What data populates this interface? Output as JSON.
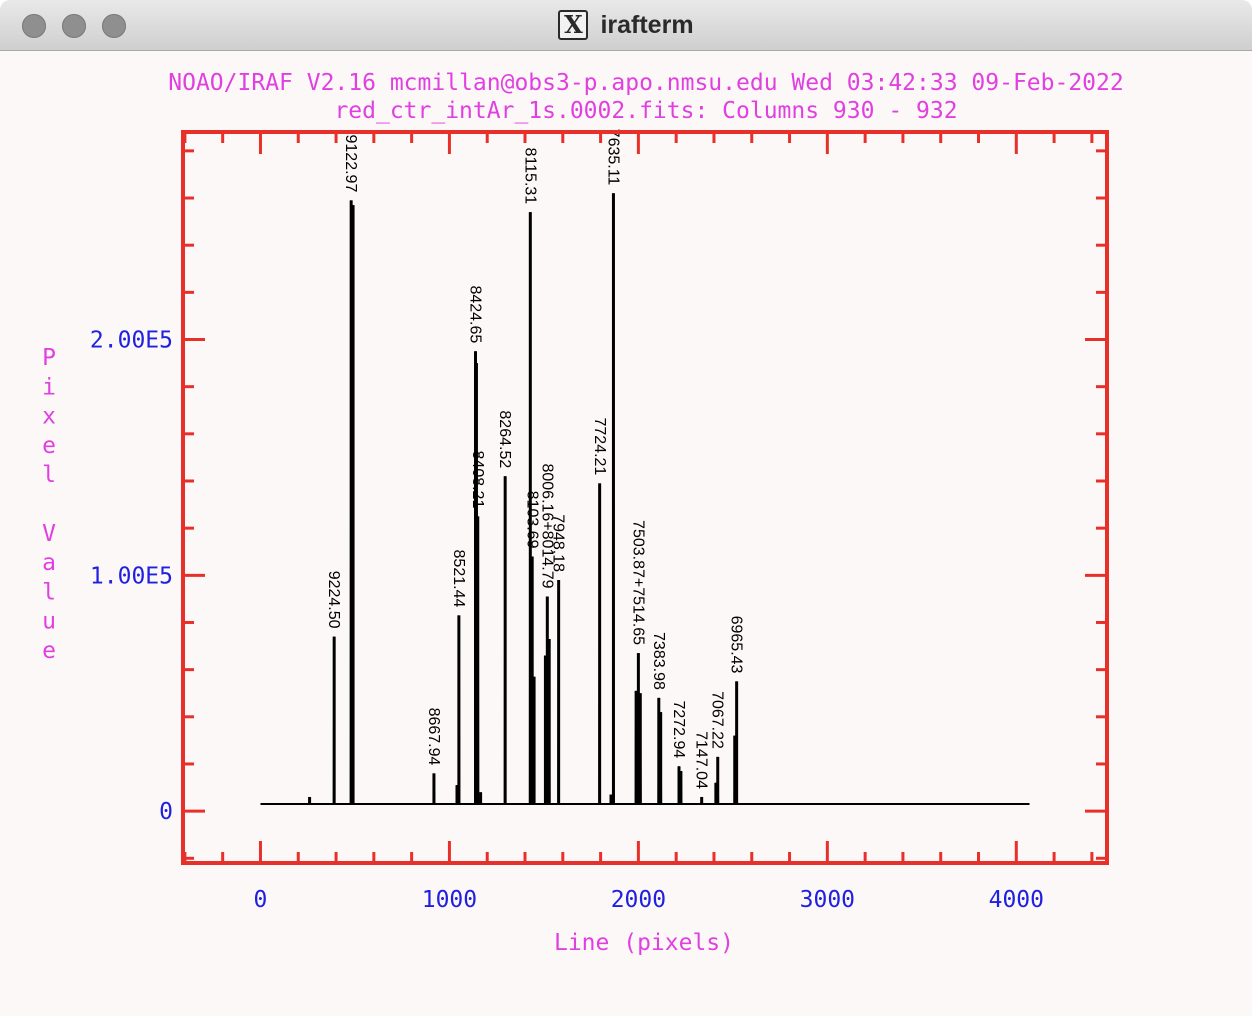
{
  "window": {
    "title": "irafterm",
    "icon": "x11-logo-icon"
  },
  "colors": {
    "title": "#e040e0",
    "tick_labels": "#2020e0",
    "frame": "#e8302a",
    "data": "#000000"
  },
  "chart_data": {
    "type": "line",
    "title": "NOAO/IRAF V2.16 mcmillan@obs3-p.apo.nmsu.edu Wed 03:42:33 09-Feb-2022",
    "subtitle": "red_ctr_intAr_1s.0002.fits: Columns 930 - 932",
    "xlabel": "Line (pixels)",
    "ylabel": "Pixel Value",
    "xlim": [
      -410,
      4480
    ],
    "ylim": [
      -22000,
      288000
    ],
    "xticks": [
      0,
      1000,
      2000,
      3000,
      4000
    ],
    "xtick_labels": [
      "0",
      "1000",
      "2000",
      "3000",
      "4000"
    ],
    "yticks": [
      0,
      100000,
      200000
    ],
    "ytick_labels": [
      "0",
      "1.00E5",
      "2.00E5"
    ],
    "grid": false,
    "baseline": 3000,
    "x_start": 0,
    "x_end": 4070,
    "peaks": [
      {
        "x": 260,
        "y": 6000,
        "label": ""
      },
      {
        "x": 390,
        "y": 74000,
        "label": "9224.50"
      },
      {
        "x": 480,
        "y": 259000,
        "label": "9122.97"
      },
      {
        "x": 490,
        "y": 257000,
        "label": ""
      },
      {
        "x": 918,
        "y": 16000,
        "label": "8667.94"
      },
      {
        "x": 1040,
        "y": 11000,
        "label": ""
      },
      {
        "x": 1050,
        "y": 83000,
        "label": "8521.44"
      },
      {
        "x": 1138,
        "y": 195000,
        "label": "8424.65"
      },
      {
        "x": 1143,
        "y": 190000,
        "label": ""
      },
      {
        "x": 1150,
        "y": 125000,
        "label": "8408.21"
      },
      {
        "x": 1165,
        "y": 8000,
        "label": ""
      },
      {
        "x": 1295,
        "y": 142000,
        "label": "8264.52"
      },
      {
        "x": 1428,
        "y": 254000,
        "label": "8115.31"
      },
      {
        "x": 1438,
        "y": 108000,
        "label": "8103.69"
      },
      {
        "x": 1448,
        "y": 57000,
        "label": ""
      },
      {
        "x": 1508,
        "y": 66000,
        "label": ""
      },
      {
        "x": 1518,
        "y": 91000,
        "label": "8006.16+8014.79"
      },
      {
        "x": 1528,
        "y": 73000,
        "label": ""
      },
      {
        "x": 1578,
        "y": 98000,
        "label": "7948.18"
      },
      {
        "x": 1795,
        "y": 139000,
        "label": "7724.21"
      },
      {
        "x": 1855,
        "y": 7000,
        "label": ""
      },
      {
        "x": 1868,
        "y": 262000,
        "label": "7635.11"
      },
      {
        "x": 1988,
        "y": 51000,
        "label": ""
      },
      {
        "x": 2000,
        "y": 67000,
        "label": "7503.87+7514.65"
      },
      {
        "x": 2010,
        "y": 50000,
        "label": ""
      },
      {
        "x": 2108,
        "y": 48000,
        "label": "7383.98"
      },
      {
        "x": 2118,
        "y": 42000,
        "label": ""
      },
      {
        "x": 2215,
        "y": 19000,
        "label": "7272.94"
      },
      {
        "x": 2225,
        "y": 17000,
        "label": ""
      },
      {
        "x": 2335,
        "y": 6000,
        "label": "7147.04"
      },
      {
        "x": 2410,
        "y": 12000,
        "label": ""
      },
      {
        "x": 2420,
        "y": 23000,
        "label": "7067.22"
      },
      {
        "x": 2510,
        "y": 32000,
        "label": ""
      },
      {
        "x": 2520,
        "y": 55000,
        "label": "6965.43"
      }
    ]
  }
}
